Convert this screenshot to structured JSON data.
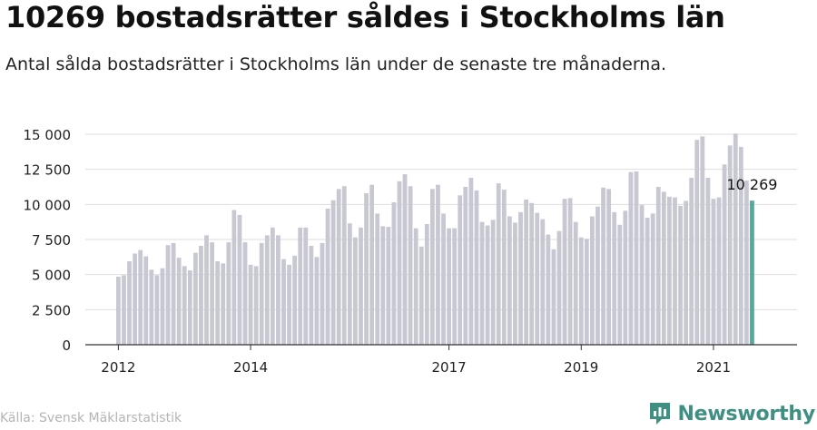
{
  "header": {
    "title": "10269 bostadsrätter såldes i Stockholms län",
    "subtitle": "Antal sålda bostadsrätter i Stockholms län under de senaste tre månaderna."
  },
  "footer": {
    "source": "Källa: Svensk Mäklarstatistik",
    "brand": "Newsworthy"
  },
  "colors": {
    "bar": "#c8c8d3",
    "highlight": "#5aa89a",
    "grid": "#dddddd",
    "axis": "#333333",
    "brand": "#3f8f83"
  },
  "chart_data": {
    "type": "bar",
    "xlabel": "",
    "ylabel": "",
    "ylim": [
      0,
      15000
    ],
    "y_ticks": [
      0,
      2500,
      5000,
      7500,
      10000,
      12500,
      15000
    ],
    "y_tick_labels": [
      "0",
      "2 500",
      "5 000",
      "7 500",
      "10 000",
      "12 500",
      "15 000"
    ],
    "x_tick_labels": [
      {
        "label": "2012",
        "index": 0
      },
      {
        "label": "2014",
        "index": 24
      },
      {
        "label": "2017",
        "index": 60
      },
      {
        "label": "2019",
        "index": 84
      },
      {
        "label": "2021",
        "index": 108
      }
    ],
    "highlight_label": "10 269",
    "values": [
      4850,
      4950,
      5950,
      6500,
      6750,
      6300,
      5350,
      4950,
      5450,
      7100,
      7250,
      6200,
      5600,
      5300,
      6550,
      7050,
      7800,
      7300,
      5950,
      5800,
      7300,
      9600,
      9250,
      7300,
      5700,
      5600,
      7250,
      7800,
      8350,
      7800,
      6100,
      5700,
      6350,
      8350,
      8350,
      7050,
      6250,
      7250,
      9700,
      10300,
      11100,
      11300,
      8650,
      7650,
      8350,
      10800,
      11400,
      9350,
      8450,
      8400,
      10150,
      11650,
      12150,
      11300,
      8300,
      7000,
      8600,
      11100,
      11400,
      9350,
      8300,
      8300,
      10650,
      11250,
      11900,
      11000,
      8750,
      8500,
      8900,
      11500,
      11050,
      9150,
      8700,
      9450,
      10350,
      10100,
      9400,
      8950,
      7850,
      6800,
      8100,
      10400,
      10450,
      8750,
      7650,
      7550,
      9150,
      9850,
      11200,
      11100,
      9450,
      8550,
      9550,
      12300,
      12350,
      9950,
      9050,
      9350,
      11250,
      10900,
      10550,
      10500,
      9900,
      10250,
      11900,
      14600,
      14850,
      11900,
      10400,
      10500,
      12850,
      14200,
      15050,
      14100,
      11700,
      10269
    ]
  }
}
